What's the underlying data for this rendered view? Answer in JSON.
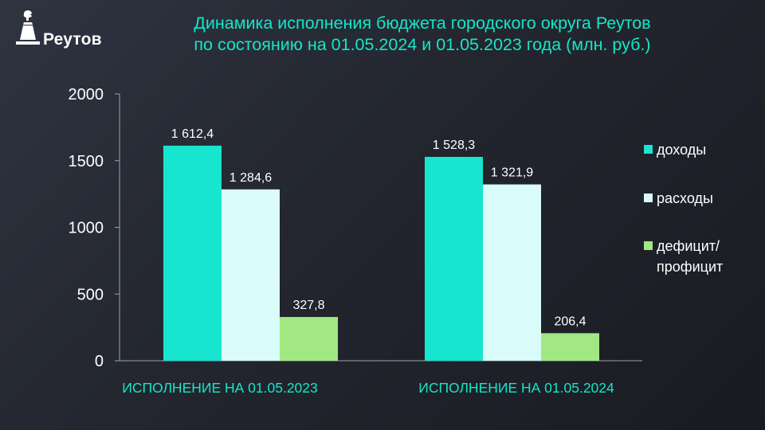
{
  "logo": {
    "name": "Реутов",
    "icon": "monument-icon"
  },
  "title": {
    "line1": "Динамика исполнения бюджета городского округа Реутов",
    "line2": "по состоянию на 01.05.2024 и 01.05.2023 года (млн. руб.)"
  },
  "colors": {
    "title": "#15e6c8",
    "income": "#17e5cf",
    "expenses": "#d9fbfa",
    "deficit": "#a2e882",
    "background": "#23262f"
  },
  "chart_data": {
    "type": "bar",
    "categories": [
      "ИСПОЛНЕНИЕ НА 01.05.2023",
      "ИСПОЛНЕНИЕ НА 01.05.2024"
    ],
    "series": [
      {
        "name": "доходы",
        "values": [
          1612.4,
          1528.3
        ],
        "labels": [
          "1 612,4",
          "1 528,3"
        ],
        "color": "#17e5cf"
      },
      {
        "name": "расходы",
        "values": [
          1284.6,
          1321.9
        ],
        "labels": [
          "1 284,6",
          "1 321,9"
        ],
        "color": "#d9fbfa"
      },
      {
        "name": "дефицит/ профицит",
        "legend_lines": [
          "дефицит/",
          "профицит"
        ],
        "values": [
          327.8,
          206.4
        ],
        "labels": [
          "327,8",
          "206,4"
        ],
        "color": "#a2e882"
      }
    ],
    "yticks": [
      "0",
      "500",
      "1000",
      "1500",
      "2000"
    ],
    "ylim": [
      0,
      2000
    ],
    "legend": "right",
    "grid": false
  }
}
